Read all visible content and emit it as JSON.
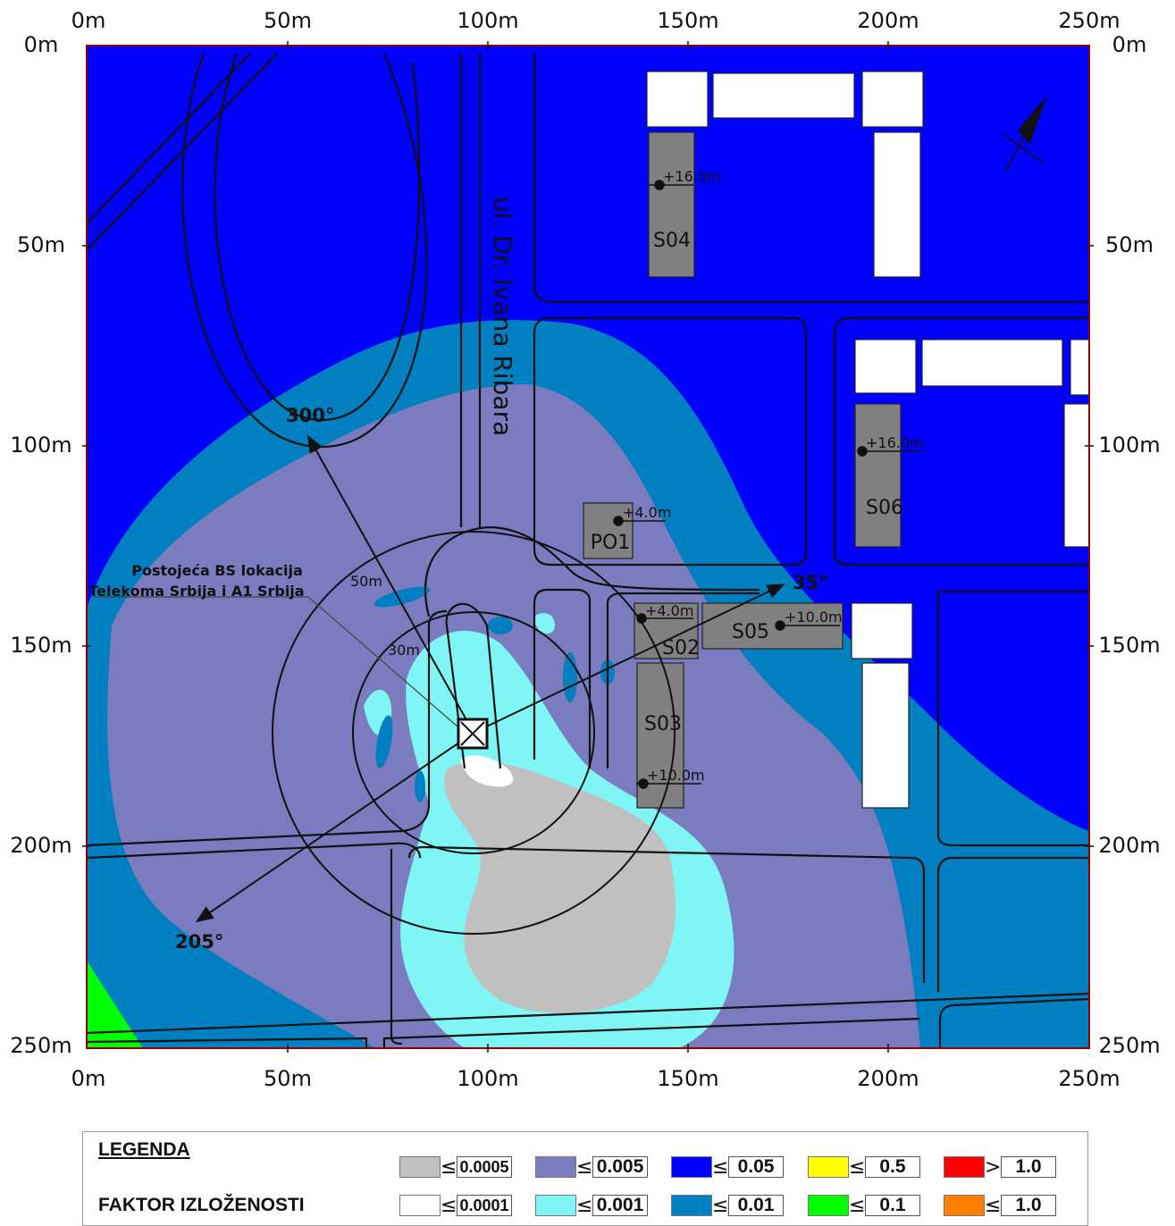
{
  "axes": {
    "top": [
      "0m",
      "50m",
      "100m",
      "150m",
      "200m",
      "250m"
    ],
    "bottom": [
      "0m",
      "50m",
      "100m",
      "150m",
      "200m",
      "250m"
    ],
    "left": [
      "0m",
      "50m",
      "100m",
      "150m",
      "200m",
      "250m"
    ],
    "right": [
      "0m",
      "50m",
      "100m",
      "150m",
      "200m",
      "250m"
    ]
  },
  "street_label": "ul. Dr. Ivana Ribara",
  "site_label_line1": "Postojeća BS lokacija",
  "site_label_line2": "Telekoma Srbija i A1 Srbija",
  "azimuths": {
    "a300": "300°",
    "a35": "35°",
    "a205": "205°"
  },
  "radii": {
    "r50": "50m",
    "r30": "30m"
  },
  "buildings": {
    "S04": {
      "name": "S04",
      "height": "+16.0m"
    },
    "S06": {
      "name": "S06",
      "height": "+16.0m"
    },
    "PO1": {
      "name": "PO1",
      "height": "+4.0m"
    },
    "S02": {
      "name": "S02",
      "height": "+4.0m"
    },
    "S05": {
      "name": "S05",
      "height": "+10.0m"
    },
    "S03": {
      "name": "S03",
      "height": "+10.0m"
    }
  },
  "legend": {
    "title": "LEGENDA",
    "subtitle": "FAKTOR IZLOŽENOSTI",
    "row1": [
      {
        "color": "#c0c0c0",
        "sym": "≤",
        "value": "0.0005"
      },
      {
        "color": "#7b7bbf",
        "sym": "≤",
        "value": "0.005"
      },
      {
        "color": "#0000ff",
        "sym": "≤",
        "value": "0.05"
      },
      {
        "color": "#ffff00",
        "sym": "≤",
        "value": "0.5"
      },
      {
        "color": "#ff0000",
        "sym": ">",
        "value": "1.0"
      }
    ],
    "row2": [
      {
        "color": "#ffffff",
        "sym": "≤",
        "value": "0.0001"
      },
      {
        "color": "#7ff5f5",
        "sym": "≤",
        "value": "0.001"
      },
      {
        "color": "#0080c0",
        "sym": "≤",
        "value": "0.01"
      },
      {
        "color": "#00ff00",
        "sym": "≤",
        "value": "0.1"
      },
      {
        "color": "#ff8000",
        "sym": "≤",
        "value": "1.0"
      }
    ]
  }
}
